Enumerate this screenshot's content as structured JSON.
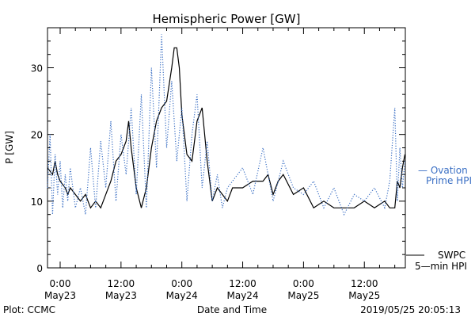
{
  "chart_data": {
    "type": "line",
    "title": "Hemispheric Power [GW]",
    "ylabel": "P [GW]",
    "xlabel": "Date and Time",
    "ylim": [
      0,
      36
    ],
    "yticks": [
      0,
      10,
      20,
      30
    ],
    "xlim": [
      "2019-05-22 21:30",
      "2019-05-25 20:05"
    ],
    "xticks": [
      {
        "time": "2019-05-23 00:00",
        "line1": "0:00",
        "line2": "May23"
      },
      {
        "time": "2019-05-23 12:00",
        "line1": "12:00",
        "line2": "May23"
      },
      {
        "time": "2019-05-24 00:00",
        "line1": "0:00",
        "line2": "May24"
      },
      {
        "time": "2019-05-24 12:00",
        "line1": "12:00",
        "line2": "May24"
      },
      {
        "time": "2019-05-25 00:00",
        "line1": "0:00",
        "line2": "May25"
      },
      {
        "time": "2019-05-25 12:00",
        "line1": "12:00",
        "line2": "May25"
      }
    ],
    "series": [
      {
        "name": "SWPC 5-min HPI",
        "color": "#000000",
        "style": "solid",
        "x": [
          "2019-05-22 21:30",
          "2019-05-22 22:30",
          "2019-05-22 23:00",
          "2019-05-22 23:30",
          "2019-05-23 00:00",
          "2019-05-23 01:00",
          "2019-05-23 01:30",
          "2019-05-23 02:00",
          "2019-05-23 03:00",
          "2019-05-23 04:00",
          "2019-05-23 05:00",
          "2019-05-23 06:00",
          "2019-05-23 07:00",
          "2019-05-23 08:00",
          "2019-05-23 09:00",
          "2019-05-23 10:00",
          "2019-05-23 11:00",
          "2019-05-23 12:00",
          "2019-05-23 13:00",
          "2019-05-23 13:30",
          "2019-05-23 14:00",
          "2019-05-23 15:00",
          "2019-05-23 16:00",
          "2019-05-23 17:00",
          "2019-05-23 18:00",
          "2019-05-23 19:00",
          "2019-05-23 20:00",
          "2019-05-23 21:00",
          "2019-05-23 22:00",
          "2019-05-23 22:30",
          "2019-05-23 23:00",
          "2019-05-23 23:30",
          "2019-05-24 00:00",
          "2019-05-24 01:00",
          "2019-05-24 02:00",
          "2019-05-24 03:00",
          "2019-05-24 04:00",
          "2019-05-24 05:00",
          "2019-05-24 06:00",
          "2019-05-24 07:00",
          "2019-05-24 08:00",
          "2019-05-24 09:00",
          "2019-05-24 10:00",
          "2019-05-24 12:00",
          "2019-05-24 14:00",
          "2019-05-24 16:00",
          "2019-05-24 17:00",
          "2019-05-24 18:00",
          "2019-05-24 19:00",
          "2019-05-24 20:00",
          "2019-05-24 22:00",
          "2019-05-25 00:00",
          "2019-05-25 02:00",
          "2019-05-25 04:00",
          "2019-05-25 06:00",
          "2019-05-25 08:00",
          "2019-05-25 10:00",
          "2019-05-25 12:00",
          "2019-05-25 14:00",
          "2019-05-25 16:00",
          "2019-05-25 17:00",
          "2019-05-25 18:00",
          "2019-05-25 18:30",
          "2019-05-25 19:00",
          "2019-05-25 19:30",
          "2019-05-25 20:00"
        ],
        "y": [
          15,
          14,
          16,
          14,
          13,
          12,
          11,
          12,
          11,
          10,
          11,
          9,
          10,
          9,
          11,
          13,
          16,
          17,
          19,
          22,
          18,
          12,
          9,
          12,
          18,
          22,
          24,
          25,
          30,
          33,
          33,
          30,
          23,
          17,
          16,
          22,
          24,
          16,
          10,
          12,
          11,
          10,
          12,
          12,
          13,
          13,
          14,
          11,
          13,
          14,
          11,
          12,
          9,
          10,
          9,
          9,
          9,
          10,
          9,
          10,
          9,
          9,
          13,
          12,
          15,
          17
        ]
      },
      {
        "name": "Ovation Prime HPI",
        "color": "#3a6fc4",
        "style": "dotted",
        "x": [
          "2019-05-22 21:30",
          "2019-05-22 22:00",
          "2019-05-22 22:30",
          "2019-05-22 23:00",
          "2019-05-22 23:30",
          "2019-05-23 00:00",
          "2019-05-23 00:30",
          "2019-05-23 01:00",
          "2019-05-23 01:30",
          "2019-05-23 02:00",
          "2019-05-23 03:00",
          "2019-05-23 04:00",
          "2019-05-23 05:00",
          "2019-05-23 06:00",
          "2019-05-23 07:00",
          "2019-05-23 08:00",
          "2019-05-23 09:00",
          "2019-05-23 10:00",
          "2019-05-23 11:00",
          "2019-05-23 12:00",
          "2019-05-23 13:00",
          "2019-05-23 14:00",
          "2019-05-23 15:00",
          "2019-05-23 16:00",
          "2019-05-23 17:00",
          "2019-05-23 18:00",
          "2019-05-23 19:00",
          "2019-05-23 20:00",
          "2019-05-23 21:00",
          "2019-05-23 22:00",
          "2019-05-23 23:00",
          "2019-05-24 00:00",
          "2019-05-24 01:00",
          "2019-05-24 02:00",
          "2019-05-24 03:00",
          "2019-05-24 04:00",
          "2019-05-24 05:00",
          "2019-05-24 06:00",
          "2019-05-24 07:00",
          "2019-05-24 08:00",
          "2019-05-24 09:00",
          "2019-05-24 10:00",
          "2019-05-24 12:00",
          "2019-05-24 14:00",
          "2019-05-24 16:00",
          "2019-05-24 18:00",
          "2019-05-24 20:00",
          "2019-05-24 22:00",
          "2019-05-25 00:00",
          "2019-05-25 02:00",
          "2019-05-25 04:00",
          "2019-05-25 06:00",
          "2019-05-25 08:00",
          "2019-05-25 10:00",
          "2019-05-25 12:00",
          "2019-05-25 14:00",
          "2019-05-25 16:00",
          "2019-05-25 17:00",
          "2019-05-25 18:00",
          "2019-05-25 18:30",
          "2019-05-25 19:00",
          "2019-05-25 19:30",
          "2019-05-25 20:00"
        ],
        "y": [
          12,
          20,
          8,
          17,
          11,
          16,
          9,
          14,
          10,
          15,
          9,
          12,
          8,
          18,
          9,
          19,
          12,
          22,
          10,
          20,
          14,
          24,
          11,
          26,
          9,
          30,
          15,
          35,
          18,
          28,
          16,
          24,
          10,
          20,
          26,
          12,
          19,
          10,
          14,
          9,
          12,
          13,
          15,
          11,
          18,
          10,
          16,
          12,
          11,
          13,
          9,
          12,
          8,
          11,
          10,
          12,
          9,
          13,
          24,
          10,
          18,
          12,
          16
        ]
      }
    ],
    "legend": {
      "placement": "right",
      "ovation": {
        "line1": "— Ovation",
        "line2": "Prime HPI"
      },
      "swpc": {
        "line1": "SWPC",
        "line2": "5—min HPI"
      }
    },
    "footer": {
      "left": "Plot: CCMC",
      "right": "2019/05/25 20:05:13"
    }
  }
}
